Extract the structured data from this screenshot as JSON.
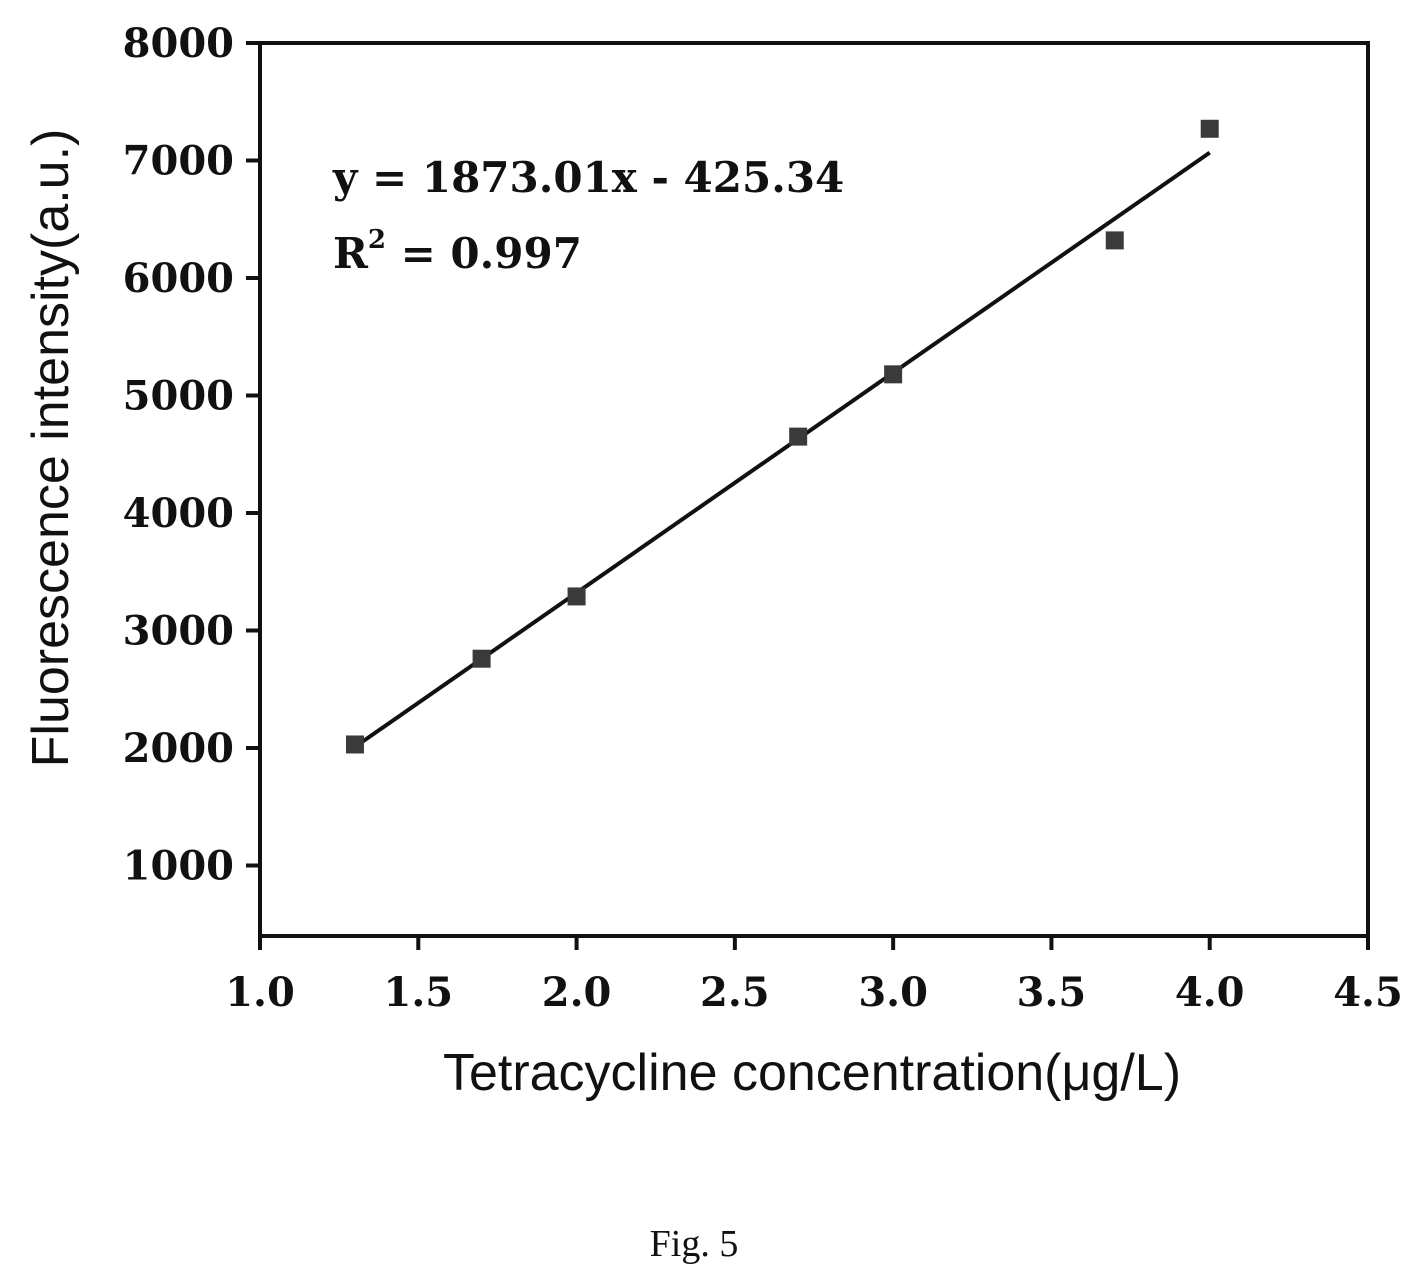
{
  "chart_data": {
    "type": "scatter",
    "xlabel": "Tetracycline concentration(μg/L)",
    "ylabel": "Fluorescence intensity(a.u.)",
    "xlim": [
      1.0,
      4.5
    ],
    "ylim": [
      400,
      8000
    ],
    "xticks": [
      1.0,
      1.5,
      2.0,
      2.5,
      3.0,
      3.5,
      4.0,
      4.5
    ],
    "xtick_labels": [
      "1.0",
      "1.5",
      "2.0",
      "2.5",
      "3.0",
      "3.5",
      "4.0",
      "4.5"
    ],
    "yticks": [
      1000,
      2000,
      3000,
      4000,
      5000,
      6000,
      7000,
      8000
    ],
    "ytick_labels": [
      "1000",
      "2000",
      "3000",
      "4000",
      "5000",
      "6000",
      "7000",
      "8000"
    ],
    "grid": false,
    "series": [
      {
        "x": [
          1.3,
          1.7,
          2.0,
          2.7,
          3.0,
          3.7,
          4.0
        ],
        "y": [
          2030,
          2760,
          3290,
          4650,
          5180,
          6320,
          7270
        ]
      }
    ],
    "fit_line": {
      "slope": 1873.01,
      "intercept": -425.34,
      "x_range": [
        1.3,
        4.0
      ]
    },
    "annotations": {
      "equation": "y = 1873.01x - 425.34",
      "r2_prefix": "R",
      "r2_sup": "2",
      "r2_value": " = 0.997"
    }
  },
  "caption": "Fig. 5"
}
